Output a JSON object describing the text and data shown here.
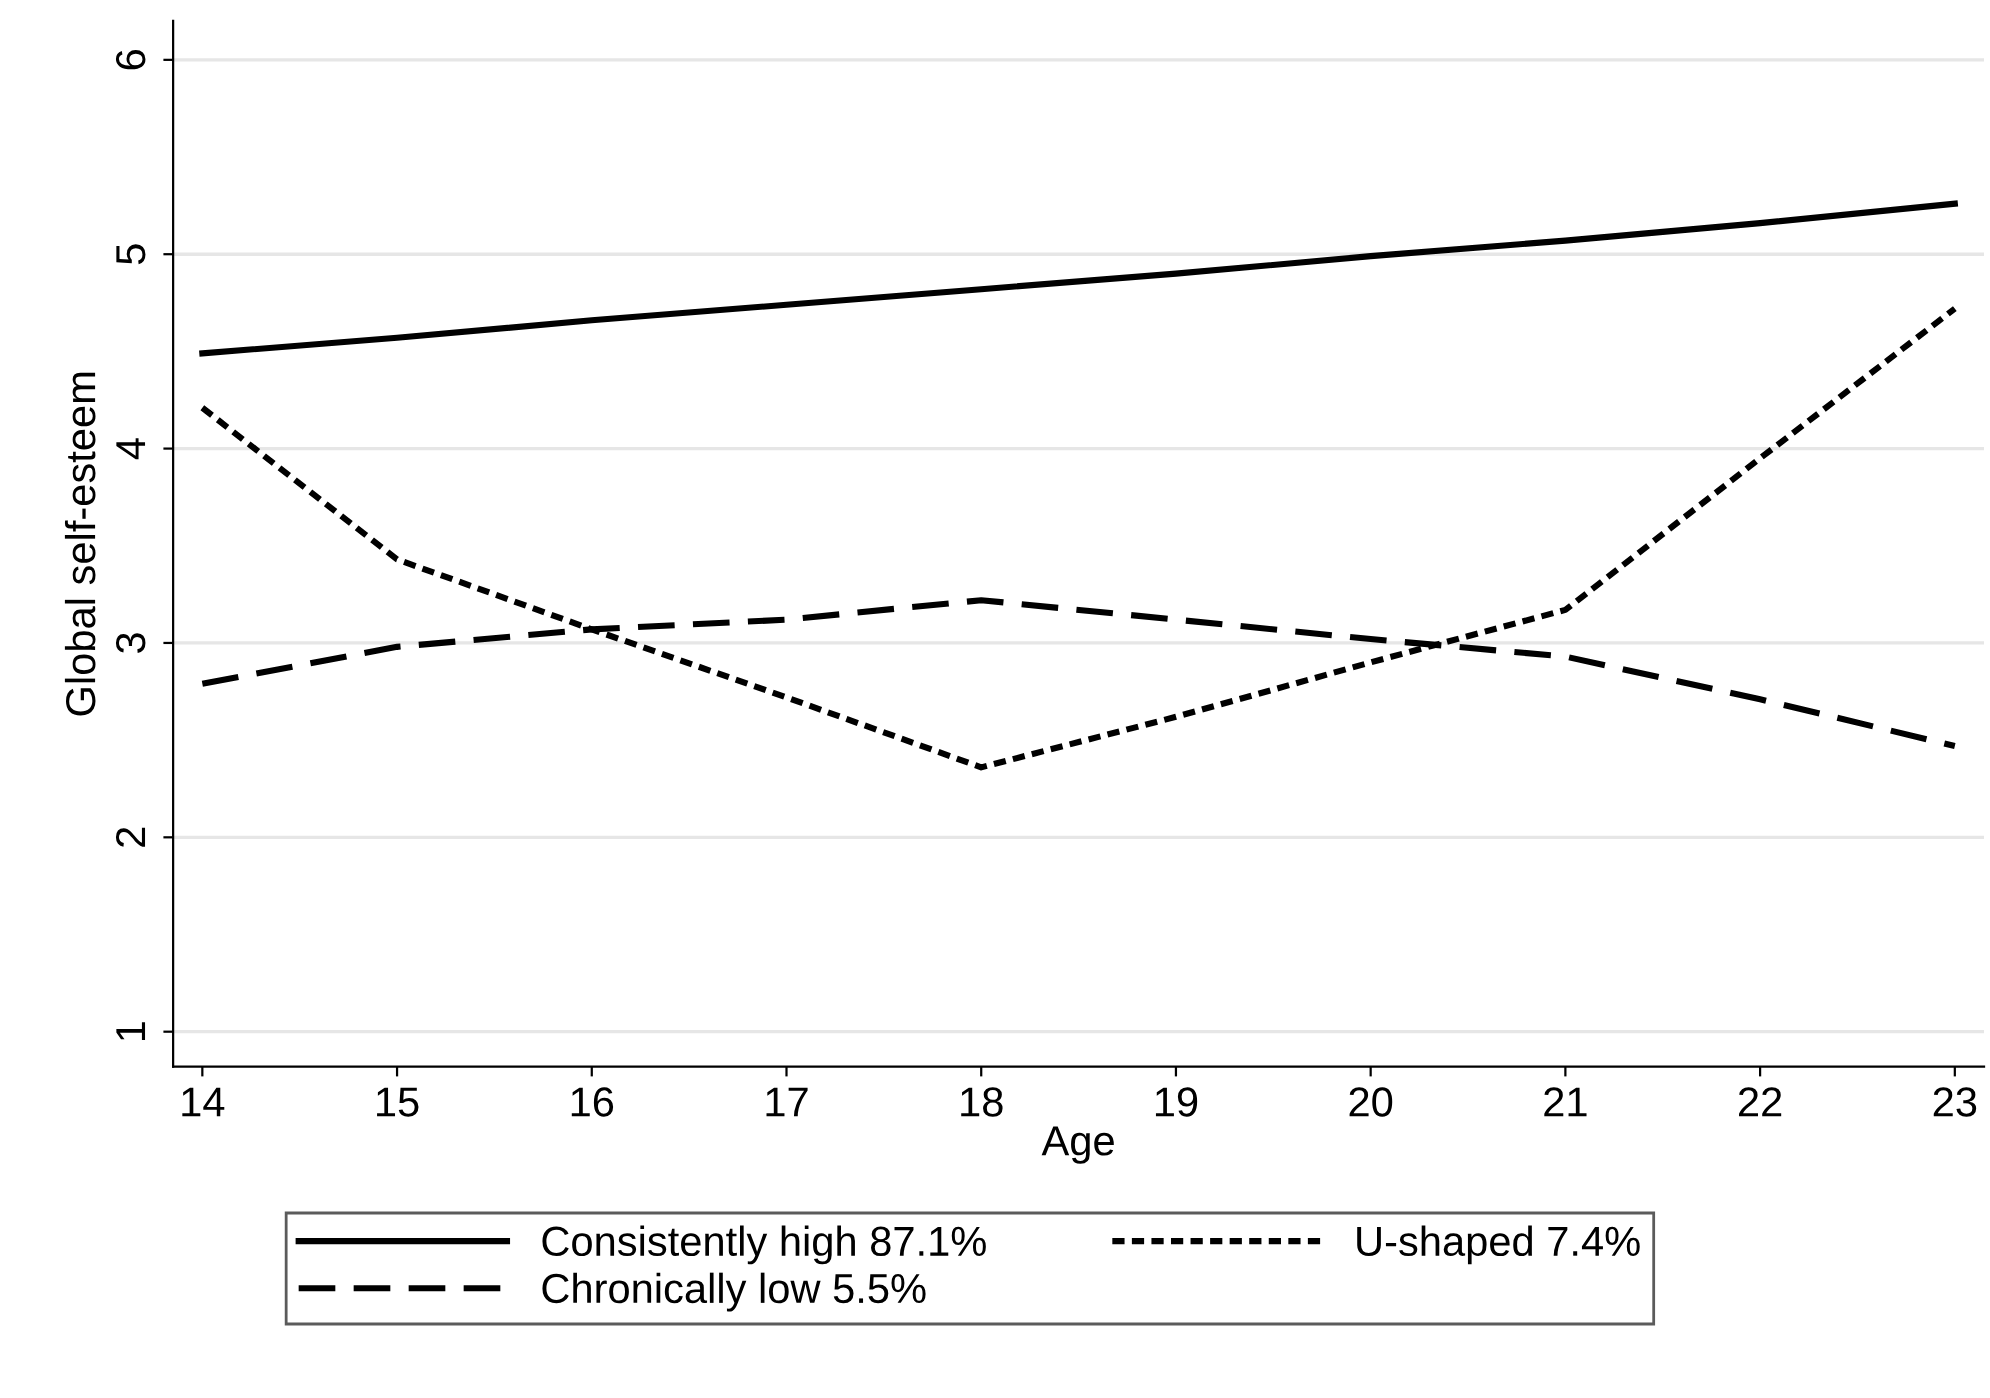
{
  "chart_data": {
    "type": "line",
    "xlabel": "Age",
    "ylabel": "Global self-esteem",
    "x": [
      14,
      15,
      16,
      17,
      18,
      19,
      20,
      21,
      22,
      23
    ],
    "xlim": [
      13.85,
      23.15
    ],
    "xticks": [
      14,
      15,
      16,
      17,
      18,
      19,
      20,
      21,
      22,
      23
    ],
    "ylim": [
      0.82,
      6.2
    ],
    "yticks": [
      1,
      2,
      3,
      4,
      5,
      6
    ],
    "grid": "y",
    "legend": "bottom",
    "marker": "none",
    "series": [
      {
        "name": "Consistently high 87.1%",
        "color": "#000000",
        "line_style": "solid",
        "values": [
          4.49,
          4.57,
          4.66,
          4.74,
          4.82,
          4.9,
          4.99,
          5.07,
          5.16,
          5.26
        ]
      },
      {
        "name": "Chronically low 5.5%",
        "color": "#000000",
        "line_style": "dashed",
        "values": [
          2.79,
          2.98,
          3.07,
          3.12,
          3.22,
          3.12,
          3.02,
          2.93,
          2.71,
          2.47
        ]
      },
      {
        "name": "U-shaped 7.4%",
        "color": "#000000",
        "line_style": "dotted",
        "values": [
          4.21,
          3.43,
          3.07,
          2.72,
          2.36,
          2.62,
          2.9,
          3.17,
          3.95,
          4.72
        ]
      }
    ]
  }
}
